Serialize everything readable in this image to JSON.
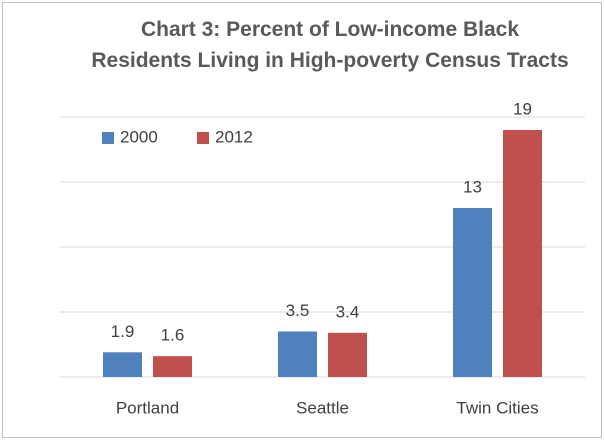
{
  "chart_data": {
    "type": "bar",
    "title": "Chart 3: Percent of Low-income Black Residents Living in High-poverty Census Tracts",
    "categories": [
      "Portland",
      "Seattle",
      "Twin Cities"
    ],
    "series": [
      {
        "name": "2000",
        "color": "#4f81bd",
        "values": [
          1.9,
          3.5,
          13
        ]
      },
      {
        "name": "2012",
        "color": "#c0504d",
        "values": [
          1.6,
          3.4,
          19
        ]
      }
    ],
    "ylim": [
      0,
      20
    ],
    "yticks": [
      0,
      5,
      10,
      15,
      20
    ],
    "grid": true,
    "legend": "top-left"
  }
}
